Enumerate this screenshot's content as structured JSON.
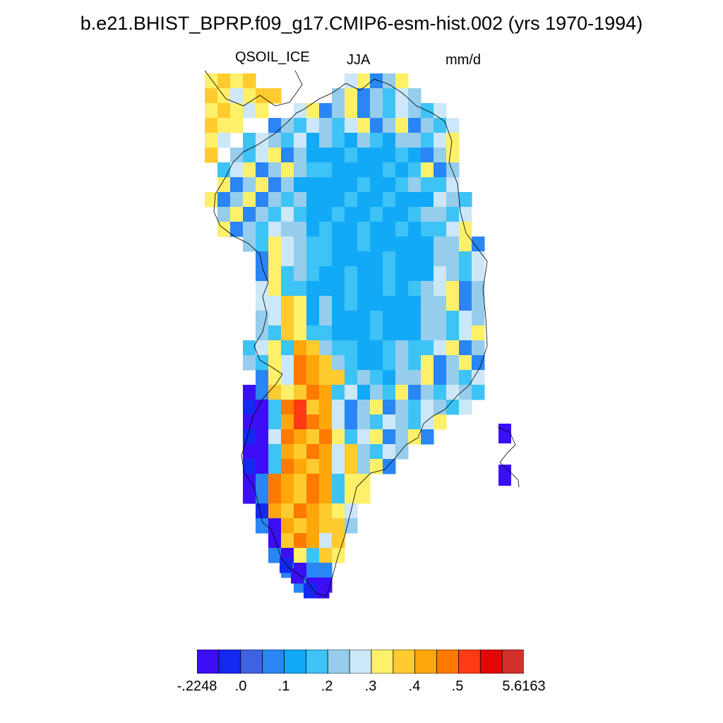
{
  "title": "b.e21.BHIST_BPRP.f09_g17.CMIP6-esm-hist.002 (yrs 1970-1994)",
  "variable": "QSOIL_ICE",
  "season": "JJA",
  "units": "mm/d",
  "colorbar": {
    "colors": [
      "#3b0ef5",
      "#1428f0",
      "#3e62e0",
      "#2a85f5",
      "#12a9f7",
      "#3dc3f5",
      "#96cdec",
      "#cce7f7",
      "#fff06a",
      "#ffcb2e",
      "#ffa70a",
      "#ff7a00",
      "#ff3a14",
      "#e30606",
      "#d4302e"
    ],
    "labels": [
      "-.2248",
      ".0",
      ".1",
      ".2",
      ".3",
      ".4",
      ".5",
      "5.6163"
    ]
  },
  "legend_colors": {
    "coastline": "#000000"
  }
}
